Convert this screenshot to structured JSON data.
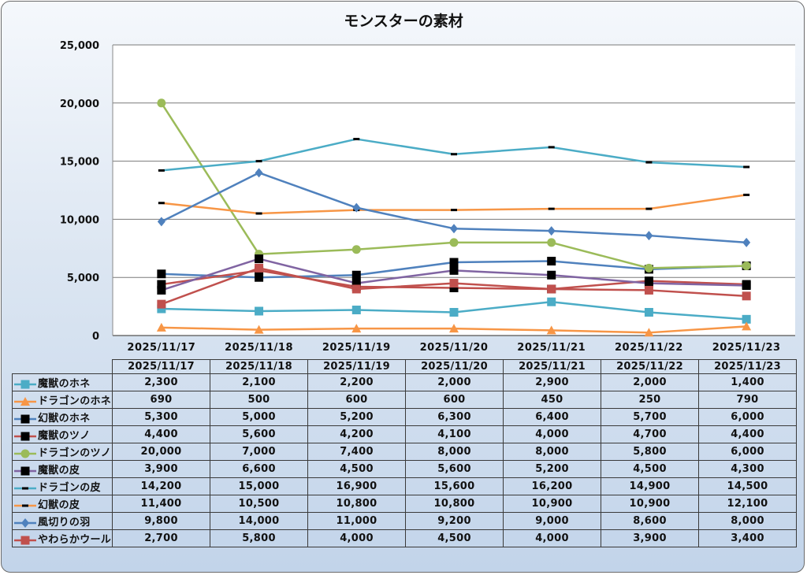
{
  "chart_data": {
    "type": "line",
    "title": "モンスターの素材",
    "xlabel": "",
    "ylabel": "",
    "ylim": [
      0,
      25000
    ],
    "yticks": [
      "0",
      "5,000",
      "10,000",
      "15,000",
      "20,000",
      "25,000"
    ],
    "ytick_values": [
      0,
      5000,
      10000,
      15000,
      20000,
      25000
    ],
    "grid": true,
    "legend": "data-table-bottom",
    "categories": [
      "2025/11/17",
      "2025/11/18",
      "2025/11/19",
      "2025/11/20",
      "2025/11/21",
      "2025/11/22",
      "2025/11/23"
    ],
    "series": [
      {
        "name": "魔獣のホネ",
        "color": "#4bacc6",
        "marker": "square",
        "marker_color": "#4bacc6",
        "values": [
          2300,
          2100,
          2200,
          2000,
          2900,
          2000,
          1400
        ],
        "labels": [
          "2,300",
          "2,100",
          "2,200",
          "2,000",
          "2,900",
          "2,000",
          "1,400"
        ]
      },
      {
        "name": "ドラゴンのホネ",
        "color": "#f79646",
        "marker": "triangle",
        "marker_color": "#f79646",
        "values": [
          690,
          500,
          600,
          600,
          450,
          250,
          790
        ],
        "labels": [
          "690",
          "500",
          "600",
          "600",
          "450",
          "250",
          "790"
        ]
      },
      {
        "name": "幻獣のホネ",
        "color": "#4f81bd",
        "marker": "square",
        "marker_color": "#000000",
        "values": [
          5300,
          5000,
          5200,
          6300,
          6400,
          5700,
          6000
        ],
        "labels": [
          "5,300",
          "5,000",
          "5,200",
          "6,300",
          "6,400",
          "5,700",
          "6,000"
        ]
      },
      {
        "name": "魔獣のツノ",
        "color": "#c0504d",
        "marker": "square",
        "marker_color": "#000000",
        "values": [
          4400,
          5600,
          4200,
          4100,
          4000,
          4700,
          4400
        ],
        "labels": [
          "4,400",
          "5,600",
          "4,200",
          "4,100",
          "4,000",
          "4,700",
          "4,400"
        ]
      },
      {
        "name": "ドラゴンのツノ",
        "color": "#9bbb59",
        "marker": "circle",
        "marker_color": "#9bbb59",
        "values": [
          20000,
          7000,
          7400,
          8000,
          8000,
          5800,
          6000
        ],
        "labels": [
          "20,000",
          "7,000",
          "7,400",
          "8,000",
          "8,000",
          "5,800",
          "6,000"
        ]
      },
      {
        "name": "魔獣の皮",
        "color": "#8064a2",
        "marker": "square",
        "marker_color": "#000000",
        "values": [
          3900,
          6600,
          4500,
          5600,
          5200,
          4500,
          4300
        ],
        "labels": [
          "3,900",
          "6,600",
          "4,500",
          "5,600",
          "5,200",
          "4,500",
          "4,300"
        ]
      },
      {
        "name": "ドラゴンの皮",
        "color": "#4bacc6",
        "marker": "dash",
        "marker_color": "#000000",
        "values": [
          14200,
          15000,
          16900,
          15600,
          16200,
          14900,
          14500
        ],
        "labels": [
          "14,200",
          "15,000",
          "16,900",
          "15,600",
          "16,200",
          "14,900",
          "14,500"
        ]
      },
      {
        "name": "幻獣の皮",
        "color": "#f79646",
        "marker": "dash",
        "marker_color": "#000000",
        "values": [
          11400,
          10500,
          10800,
          10800,
          10900,
          10900,
          12100
        ],
        "labels": [
          "11,400",
          "10,500",
          "10,800",
          "10,800",
          "10,900",
          "10,900",
          "12,100"
        ]
      },
      {
        "name": "風切りの羽",
        "color": "#4f81bd",
        "marker": "diamond",
        "marker_color": "#4f81bd",
        "values": [
          9800,
          14000,
          11000,
          9200,
          9000,
          8600,
          8000
        ],
        "labels": [
          "9,800",
          "14,000",
          "11,000",
          "9,200",
          "9,000",
          "8,600",
          "8,000"
        ]
      },
      {
        "name": "やわらかウール",
        "color": "#c0504d",
        "marker": "square",
        "marker_color": "#c0504d",
        "values": [
          2700,
          5800,
          4000,
          4500,
          4000,
          3900,
          3400
        ],
        "labels": [
          "2,700",
          "5,800",
          "4,000",
          "4,500",
          "4,000",
          "3,900",
          "3,400"
        ]
      }
    ]
  }
}
